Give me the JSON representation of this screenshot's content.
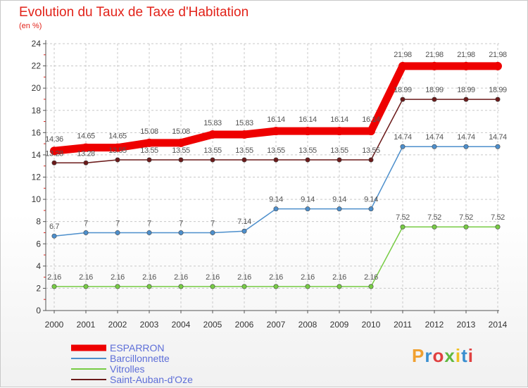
{
  "title": "Evolution du Taux de Taxe d'Habitation",
  "unit": "(en %)",
  "brand": "Proxiti",
  "chart_data": {
    "type": "line",
    "x": [
      "2000",
      "2001",
      "2002",
      "2003",
      "2004",
      "2005",
      "2006",
      "2007",
      "2008",
      "2009",
      "2010",
      "2011",
      "2012",
      "2013",
      "2014"
    ],
    "ylim": [
      0,
      24
    ],
    "yticks": [
      0,
      2,
      4,
      6,
      8,
      10,
      12,
      14,
      16,
      18,
      20,
      22,
      24
    ],
    "grid": true,
    "legend_position": "bottom-left",
    "series": [
      {
        "name": "ESPARRON",
        "color": "#ee0000",
        "values": [
          14.36,
          14.65,
          14.65,
          15.08,
          15.08,
          15.83,
          15.83,
          16.14,
          16.14,
          16.14,
          16.14,
          21.98,
          21.98,
          21.98,
          21.98
        ]
      },
      {
        "name": "Barcillonnette",
        "color": "#4d8fcc",
        "values": [
          6.7,
          7,
          7,
          7,
          7,
          7,
          7.14,
          9.14,
          9.14,
          9.14,
          9.14,
          14.74,
          14.74,
          14.74,
          14.74
        ]
      },
      {
        "name": "Vitrolles",
        "color": "#77cc44",
        "values": [
          2.16,
          2.16,
          2.16,
          2.16,
          2.16,
          2.16,
          2.16,
          2.16,
          2.16,
          2.16,
          2.16,
          7.52,
          7.52,
          7.52,
          7.52
        ]
      },
      {
        "name": "Saint-Auban-d'Oze",
        "color": "#6b1a1a",
        "values": [
          13.28,
          13.28,
          13.55,
          13.55,
          13.55,
          13.55,
          13.55,
          13.55,
          13.55,
          13.55,
          13.55,
          18.99,
          18.99,
          18.99,
          18.99
        ]
      }
    ]
  }
}
